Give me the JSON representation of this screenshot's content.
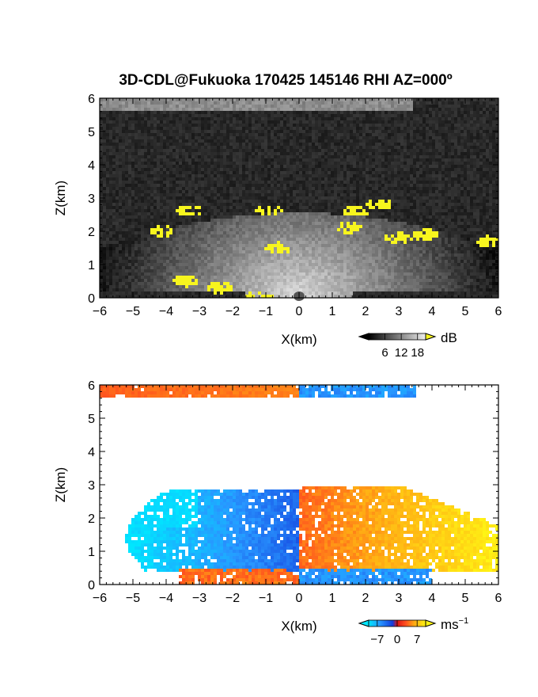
{
  "chart_data": [
    {
      "type": "heatmap",
      "panel": "reflectivity",
      "title": "3D-CDL@Fukuoka 170425 145146 RHI AZ=000º",
      "xlabel": "X(km)",
      "ylabel": "Z(km)",
      "xlim": [
        -6,
        6
      ],
      "ylim": [
        0,
        6
      ],
      "xticks": [
        "−6",
        "−5",
        "−4",
        "−3",
        "−2",
        "−1",
        "0",
        "1",
        "2",
        "3",
        "4",
        "5",
        "6"
      ],
      "yticks": [
        "0",
        "1",
        "2",
        "3",
        "4",
        "5",
        "6"
      ],
      "colorbar": {
        "unit": "dB",
        "ticks": [
          "6",
          "12",
          "18"
        ],
        "range": [
          0,
          21
        ]
      },
      "features": [
        {
          "desc": "noise background",
          "x": [
            -6,
            6
          ],
          "z": [
            0,
            6
          ],
          "value_db": 3
        },
        {
          "desc": "bright band near top",
          "x": [
            -6,
            3.4
          ],
          "z": [
            5.7,
            6
          ],
          "value_db": 11
        },
        {
          "desc": "boundary layer return",
          "x": [
            -6,
            6
          ],
          "z": [
            0,
            2.6
          ],
          "value_db": 12
        },
        {
          "desc": "strong echoes (yellow)",
          "points": [
            [
              -3.3,
              2.6
            ],
            [
              -4.1,
              2.0
            ],
            [
              -0.9,
              2.6
            ],
            [
              -0.6,
              1.5
            ],
            [
              1.7,
              2.6
            ],
            [
              2.4,
              2.8
            ],
            [
              1.5,
              2.1
            ],
            [
              3.0,
              1.8
            ],
            [
              3.8,
              1.9
            ],
            [
              5.7,
              1.7
            ],
            [
              -3.4,
              0.5
            ],
            [
              -2.4,
              0.3
            ],
            [
              -1.2,
              0.05
            ]
          ],
          "value_db": 20
        }
      ]
    },
    {
      "type": "heatmap",
      "panel": "radial velocity",
      "xlabel": "X(km)",
      "ylabel": "Z(km)",
      "xlim": [
        -6,
        6
      ],
      "ylim": [
        0,
        6
      ],
      "xticks": [
        "−6",
        "−5",
        "−4",
        "−3",
        "−2",
        "−1",
        "0",
        "1",
        "2",
        "3",
        "4",
        "5",
        "6"
      ],
      "yticks": [
        "0",
        "1",
        "2",
        "3",
        "4",
        "5",
        "6"
      ],
      "colorbar": {
        "unit": "ms",
        "unit_exponent": "−1",
        "ticks": [
          "−7",
          "0",
          "7"
        ],
        "range": [
          -10,
          10
        ]
      },
      "features": [
        {
          "desc": "upper layer left (approaching red/orange)",
          "x": [
            -6,
            0
          ],
          "z": [
            5.7,
            6
          ],
          "velocity": 5
        },
        {
          "desc": "upper layer right (blue)",
          "x": [
            0,
            3.5
          ],
          "z": [
            5.7,
            6
          ],
          "velocity": -6
        },
        {
          "desc": "lower layer left (blue/cyan)",
          "x": [
            -5.0,
            0
          ],
          "z": [
            0.4,
            2.9
          ],
          "velocity": -6
        },
        {
          "desc": "lower layer right (red to yellow)",
          "x": [
            0,
            6
          ],
          "z": [
            0.4,
            3.0
          ],
          "velocity": 6
        },
        {
          "desc": "near-ground left (red)",
          "x": [
            -3.5,
            0
          ],
          "z": [
            0,
            0.4
          ],
          "velocity": 4
        },
        {
          "desc": "near-ground right (blue)",
          "x": [
            0,
            4.0
          ],
          "z": [
            0,
            0.4
          ],
          "velocity": -6
        }
      ]
    }
  ]
}
